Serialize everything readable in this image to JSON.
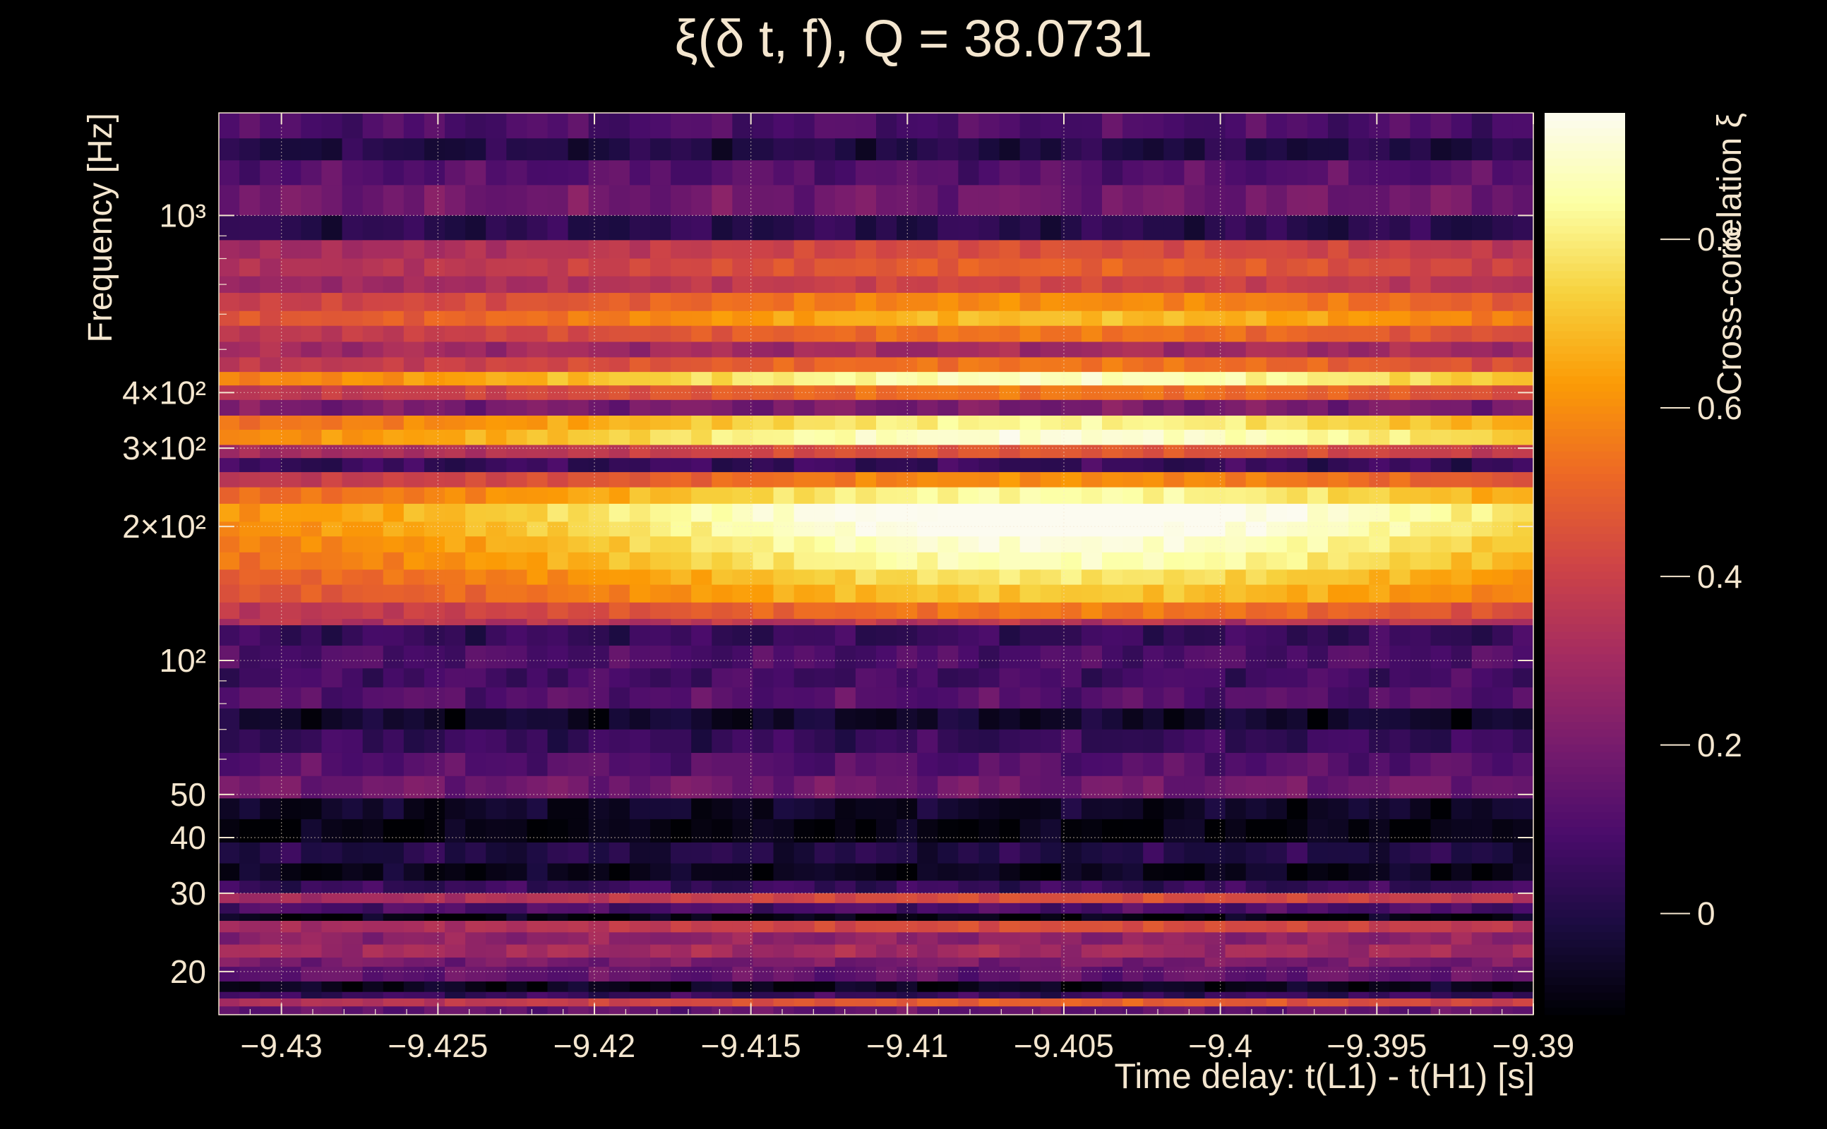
{
  "title": "ξ(δ t, f), Q = 38.0731",
  "colors": {
    "background": "#000000",
    "text": "#f4e6cf",
    "colormap": [
      "#000004",
      "#1b0c41",
      "#4a0c6b",
      "#781c6d",
      "#a52c60",
      "#cf4446",
      "#ed6925",
      "#fb9b06",
      "#f7d13d",
      "#fcffa4",
      "#fcfbf0"
    ]
  },
  "chart_data": {
    "type": "heatmap",
    "title": "ξ(δ t, f), Q = 38.0731",
    "xlabel": "Time delay: t(L1) - t(H1) [s]",
    "ylabel": "Frequency [Hz]",
    "colorbar_label": "Cross-correlation ξ",
    "xlim": [
      -9.432,
      -9.39
    ],
    "ylim": [
      16,
      1700
    ],
    "yscale": "log",
    "clim": [
      -0.12,
      0.95
    ],
    "colormap": "inferno",
    "grid": true,
    "x_ticks": [
      {
        "v": -9.43,
        "label": "−9.43"
      },
      {
        "v": -9.425,
        "label": "−9.425"
      },
      {
        "v": -9.42,
        "label": "−9.42"
      },
      {
        "v": -9.415,
        "label": "−9.415"
      },
      {
        "v": -9.41,
        "label": "−9.41"
      },
      {
        "v": -9.405,
        "label": "−9.405"
      },
      {
        "v": -9.4,
        "label": "−9.4"
      },
      {
        "v": -9.395,
        "label": "−9.395"
      },
      {
        "v": -9.39,
        "label": "−9.39"
      }
    ],
    "y_ticks": [
      {
        "v": 20,
        "label": "20"
      },
      {
        "v": 30,
        "label": "30"
      },
      {
        "v": 40,
        "label": "40"
      },
      {
        "v": 50,
        "label": "50"
      },
      {
        "v": 100,
        "label": "10²"
      },
      {
        "v": 200,
        "label": "2×10²"
      },
      {
        "v": 300,
        "label": "3×10²"
      },
      {
        "v": 400,
        "label": "4×10²"
      },
      {
        "v": 1000,
        "label": "10³"
      }
    ],
    "colorbar_ticks": [
      {
        "v": 0.0,
        "label": "0"
      },
      {
        "v": 0.2,
        "label": "0.2"
      },
      {
        "v": 0.4,
        "label": "0.4"
      },
      {
        "v": 0.6,
        "label": "0.6"
      },
      {
        "v": 0.8,
        "label": "0.8"
      }
    ],
    "peak": {
      "x": -9.4053,
      "f": 205,
      "value": 0.93
    },
    "frequency_bands": [
      {
        "f": [
          1490,
          1700
        ],
        "v": 0.1
      },
      {
        "f": [
          1330,
          1490
        ],
        "v": 0.0
      },
      {
        "f": [
          1170,
          1330
        ],
        "v": 0.12
      },
      {
        "f": [
          1000,
          1170
        ],
        "v": 0.18
      },
      {
        "f": [
          880,
          1000
        ],
        "v": 0.02
      },
      {
        "f": [
          800,
          880
        ],
        "v": 0.45
      },
      {
        "f": [
          730,
          800
        ],
        "v": 0.5
      },
      {
        "f": [
          670,
          730
        ],
        "v": 0.42
      },
      {
        "f": [
          610,
          670
        ],
        "v": 0.6
      },
      {
        "f": [
          565,
          610
        ],
        "v": 0.7
      },
      {
        "f": [
          520,
          565
        ],
        "v": 0.55
      },
      {
        "f": [
          480,
          520
        ],
        "v": 0.3
      },
      {
        "f": [
          445,
          480
        ],
        "v": 0.55
      },
      {
        "f": [
          415,
          445
        ],
        "v": 0.88
      },
      {
        "f": [
          385,
          415
        ],
        "v": 0.55
      },
      {
        "f": [
          355,
          385
        ],
        "v": 0.2
      },
      {
        "f": [
          330,
          355
        ],
        "v": 0.82
      },
      {
        "f": [
          305,
          330
        ],
        "v": 0.9
      },
      {
        "f": [
          285,
          305
        ],
        "v": 0.45
      },
      {
        "f": [
          265,
          285
        ],
        "v": 0.05
      },
      {
        "f": [
          245,
          265
        ],
        "v": 0.55
      },
      {
        "f": [
          225,
          245
        ],
        "v": 0.78
      },
      {
        "f": [
          205,
          225
        ],
        "v": 0.93
      },
      {
        "f": [
          190,
          205
        ],
        "v": 0.9
      },
      {
        "f": [
          175,
          190
        ],
        "v": 0.85
      },
      {
        "f": [
          160,
          175
        ],
        "v": 0.82
      },
      {
        "f": [
          148,
          160
        ],
        "v": 0.75
      },
      {
        "f": [
          135,
          148
        ],
        "v": 0.7
      },
      {
        "f": [
          124,
          135
        ],
        "v": 0.55
      },
      {
        "f": [
          120,
          124
        ],
        "v": 0.35
      },
      {
        "f": [
          108,
          120
        ],
        "v": 0.05
      },
      {
        "f": [
          96,
          108
        ],
        "v": 0.1
      },
      {
        "f": [
          87,
          96
        ],
        "v": 0.08
      },
      {
        "f": [
          78,
          87
        ],
        "v": 0.12
      },
      {
        "f": [
          70,
          78
        ],
        "v": -0.05
      },
      {
        "f": [
          62,
          70
        ],
        "v": 0.05
      },
      {
        "f": [
          55,
          62
        ],
        "v": 0.12
      },
      {
        "f": [
          49,
          55
        ],
        "v": 0.18
      },
      {
        "f": [
          44,
          49
        ],
        "v": -0.06
      },
      {
        "f": [
          39,
          44
        ],
        "v": -0.1
      },
      {
        "f": [
          35,
          39
        ],
        "v": 0.0
      },
      {
        "f": [
          32,
          35
        ],
        "v": -0.08
      },
      {
        "f": [
          30,
          32
        ],
        "v": 0.05
      },
      {
        "f": [
          28.5,
          30
        ],
        "v": 0.45
      },
      {
        "f": [
          27,
          28.5
        ],
        "v": 0.1
      },
      {
        "f": [
          26,
          27
        ],
        "v": -0.1
      },
      {
        "f": [
          24.5,
          26
        ],
        "v": 0.45
      },
      {
        "f": [
          23,
          24.5
        ],
        "v": 0.25
      },
      {
        "f": [
          21.5,
          23
        ],
        "v": 0.3
      },
      {
        "f": [
          20.5,
          21.5
        ],
        "v": 0.2
      },
      {
        "f": [
          19,
          20.5
        ],
        "v": 0.15
      },
      {
        "f": [
          18,
          19
        ],
        "v": -0.08
      },
      {
        "f": [
          17.4,
          18
        ],
        "v": 0.05
      },
      {
        "f": [
          16.7,
          17.4
        ],
        "v": 0.5
      },
      {
        "f": [
          16,
          16.7
        ],
        "v": 0.15
      }
    ]
  }
}
